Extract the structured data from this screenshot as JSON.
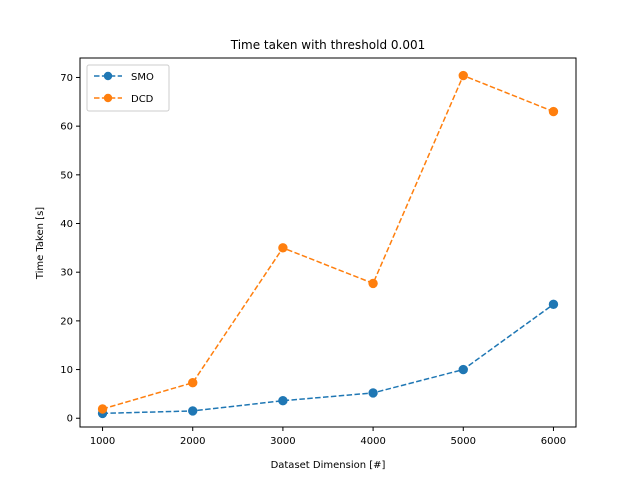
{
  "chart_data": {
    "type": "line",
    "title": "Time taken with threshold 0.001",
    "xlabel": "Dataset Dimension [#]",
    "ylabel": "Time Taken [s]",
    "x": [
      1000,
      2000,
      3000,
      4000,
      5000,
      6000
    ],
    "xlim": [
      750,
      6250
    ],
    "ylim": [
      -1.8,
      74
    ],
    "xticks": [
      "1000",
      "2000",
      "3000",
      "4000",
      "5000",
      "6000"
    ],
    "yticks": [
      "0",
      "10",
      "20",
      "30",
      "40",
      "50",
      "60",
      "70"
    ],
    "grid": false,
    "legend": "top-left",
    "series": [
      {
        "name": "SMO",
        "color": "#1f77b4",
        "style": "dashed",
        "marker": "circle",
        "values": [
          1.0,
          1.5,
          3.6,
          5.2,
          10.0,
          23.4
        ]
      },
      {
        "name": "DCD",
        "color": "#ff7f0e",
        "style": "dashed",
        "marker": "circle",
        "values": [
          1.9,
          7.3,
          35.0,
          27.7,
          70.4,
          63.0
        ]
      }
    ]
  }
}
